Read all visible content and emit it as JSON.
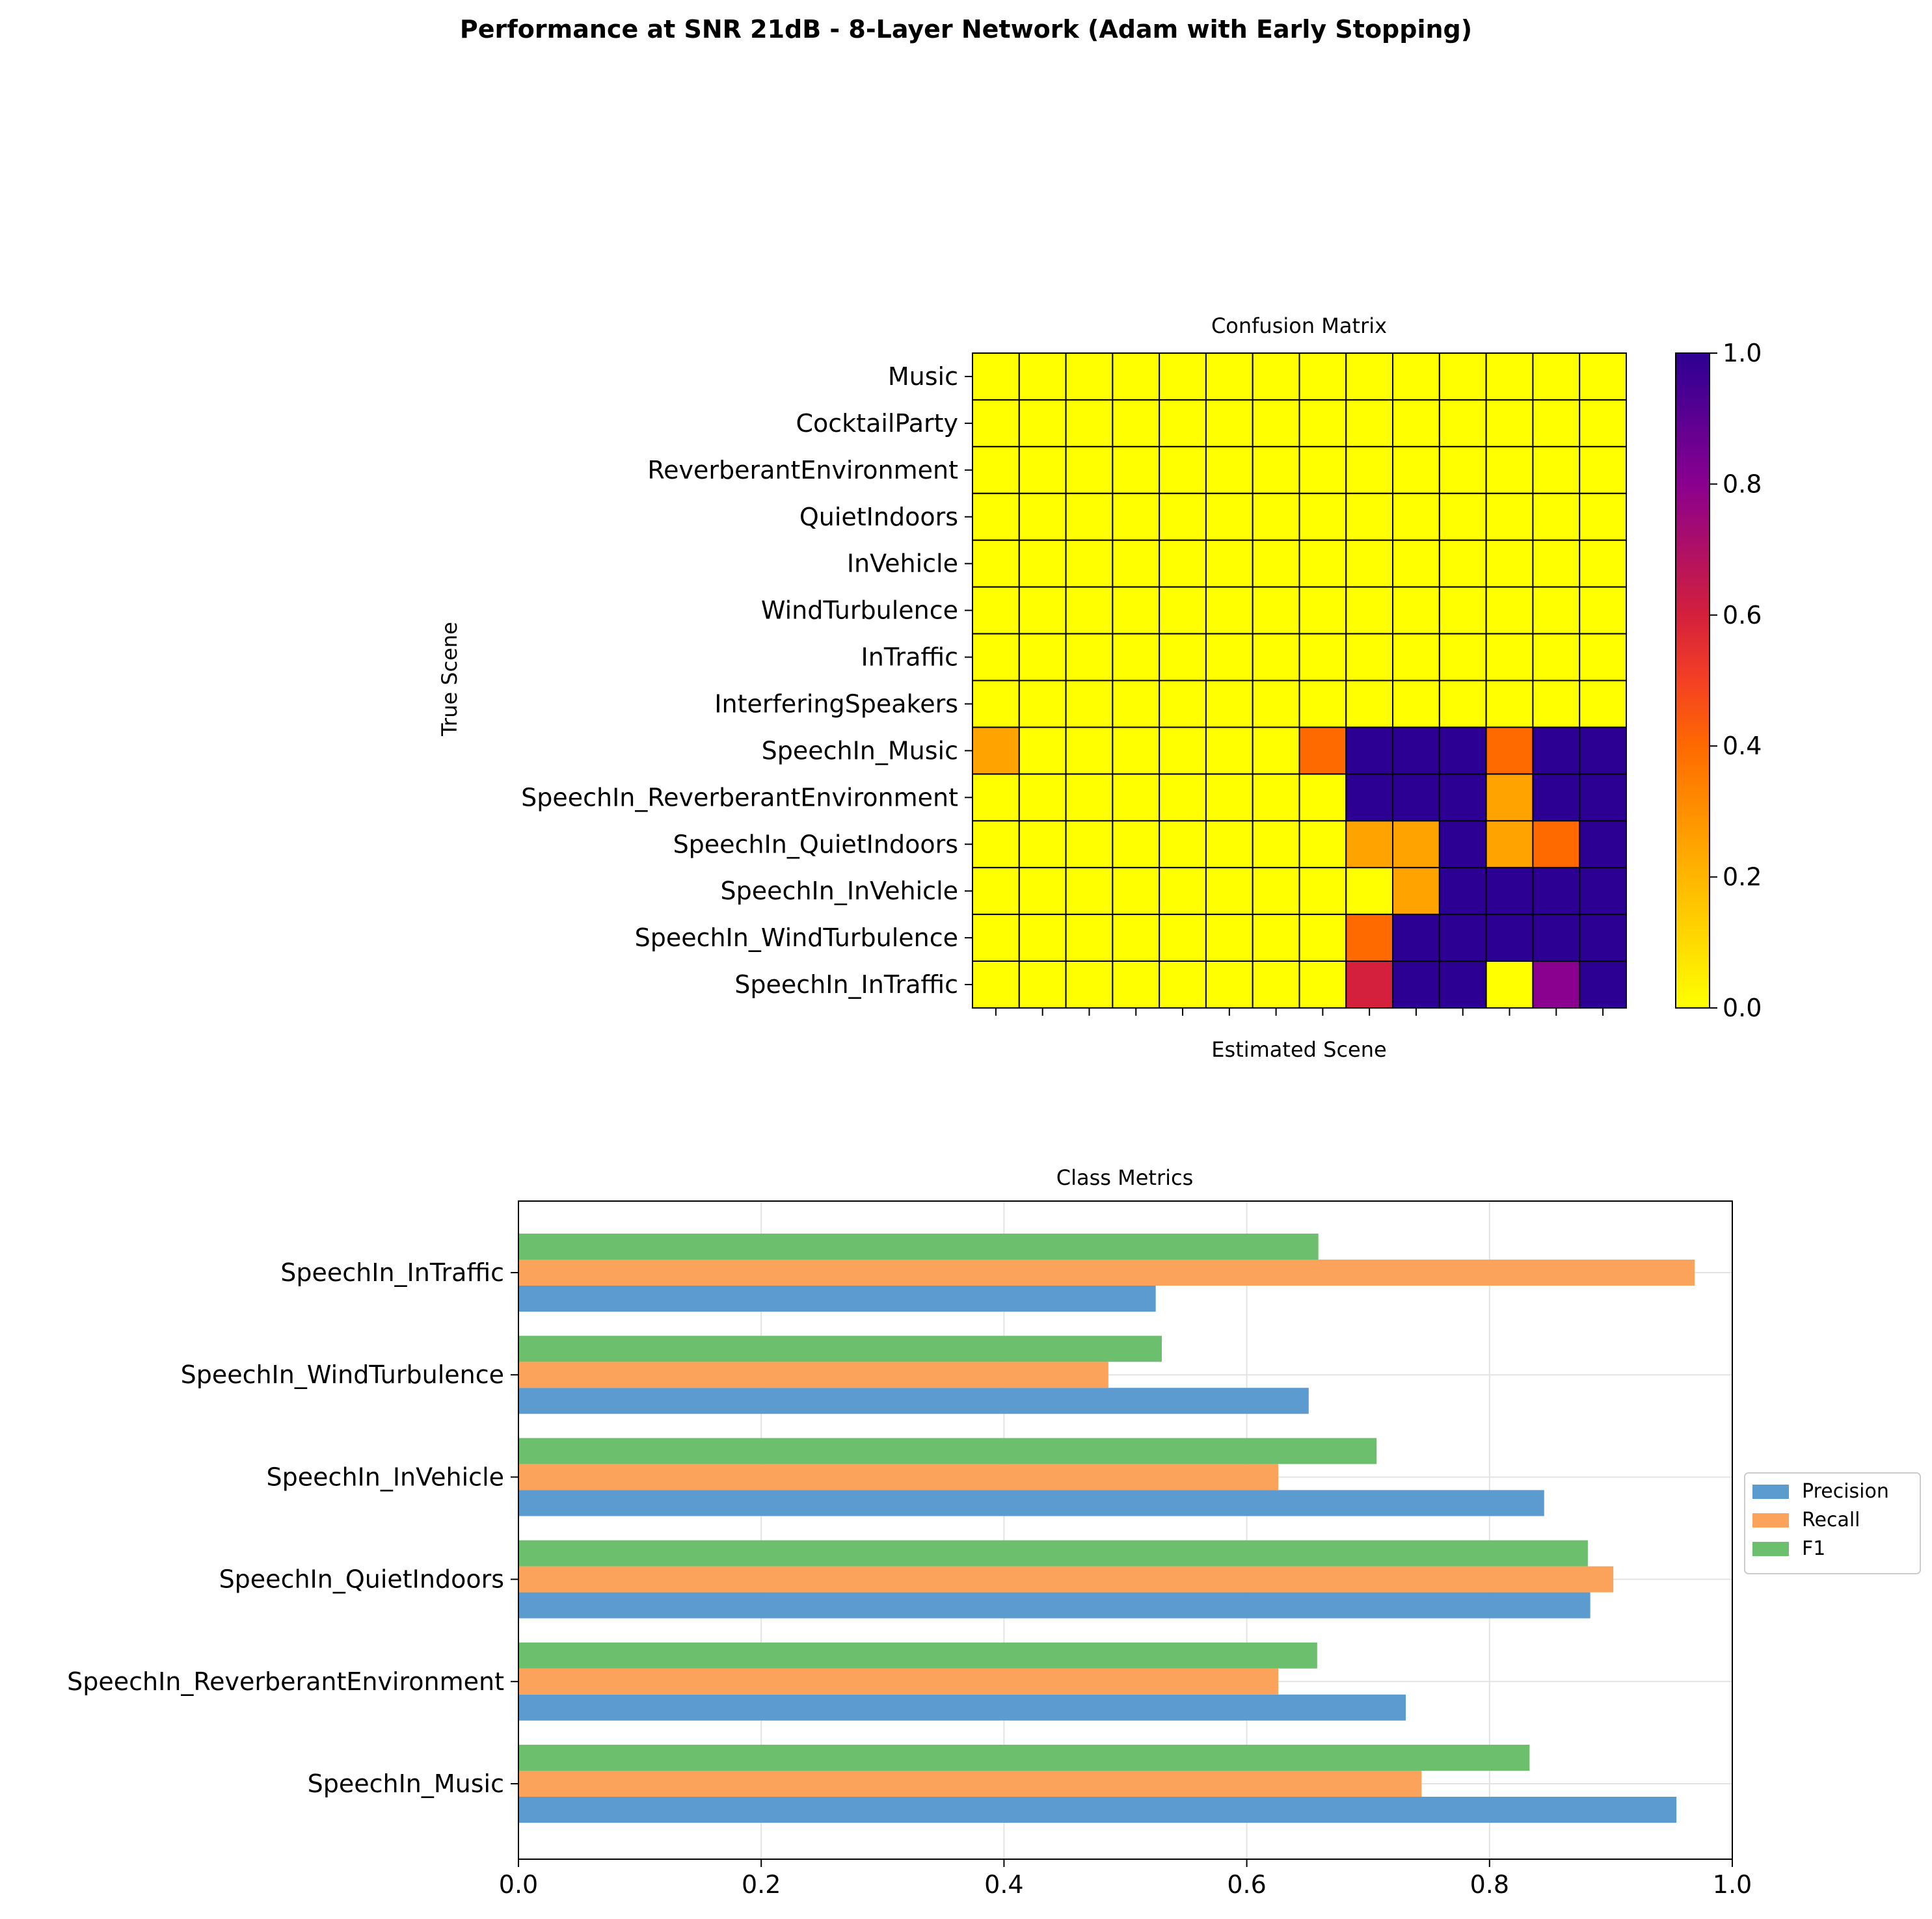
{
  "suptitle": "Performance at SNR 21dB - 8-Layer Network (Adam with Early Stopping)",
  "chart_data": [
    {
      "type": "heatmap",
      "title": "Confusion Matrix",
      "xlabel": "Estimated Scene",
      "ylabel": "True Scene",
      "colormap": "plasma_r",
      "colorbar": {
        "range": [
          0,
          1
        ],
        "ticks": [
          "0.0",
          "0.2",
          "0.4",
          "0.6",
          "0.8",
          "1.0"
        ]
      },
      "row_labels": [
        "Music",
        "CocktailParty",
        "ReverberantEnvironment",
        "QuietIndoors",
        "InVehicle",
        "WindTurbulence",
        "InTraffic",
        "InterferingSpeakers",
        "SpeechIn_Music",
        "SpeechIn_ReverberantEnvironment",
        "SpeechIn_QuietIndoors",
        "SpeechIn_InVehicle",
        "SpeechIn_WindTurbulence",
        "SpeechIn_InTraffic"
      ],
      "values": [
        [
          0,
          0,
          0,
          0,
          0,
          0,
          0,
          0,
          0,
          0,
          0,
          0,
          0,
          0
        ],
        [
          0,
          0,
          0,
          0,
          0,
          0,
          0,
          0,
          0,
          0,
          0,
          0,
          0,
          0
        ],
        [
          0,
          0,
          0,
          0,
          0,
          0,
          0,
          0,
          0,
          0,
          0,
          0,
          0,
          0
        ],
        [
          0,
          0,
          0,
          0,
          0,
          0,
          0,
          0,
          0,
          0,
          0,
          0,
          0,
          0
        ],
        [
          0,
          0,
          0,
          0,
          0,
          0,
          0,
          0,
          0,
          0,
          0,
          0,
          0,
          0
        ],
        [
          0,
          0,
          0,
          0,
          0,
          0,
          0,
          0,
          0,
          0,
          0,
          0,
          0,
          0
        ],
        [
          0,
          0,
          0,
          0,
          0,
          0,
          0,
          0,
          0,
          0,
          0,
          0,
          0,
          0
        ],
        [
          0,
          0,
          0,
          0,
          0,
          0,
          0,
          0,
          0,
          0,
          0,
          0,
          0,
          0
        ],
        [
          0.25,
          0,
          0,
          0,
          0,
          0,
          0,
          0.4,
          1,
          1,
          1,
          0.4,
          1,
          1
        ],
        [
          0,
          0,
          0,
          0,
          0,
          0,
          0,
          0,
          1,
          1,
          1,
          0.25,
          1,
          1
        ],
        [
          0,
          0,
          0,
          0,
          0,
          0,
          0,
          0,
          0.25,
          0.25,
          1,
          0.25,
          0.4,
          1
        ],
        [
          0,
          0,
          0,
          0,
          0,
          0,
          0,
          0,
          0,
          0.25,
          1,
          1,
          1,
          1
        ],
        [
          0,
          0,
          0,
          0,
          0,
          0,
          0,
          0,
          0.4,
          1,
          1,
          1,
          1,
          1
        ],
        [
          0,
          0,
          0,
          0,
          0,
          0,
          0,
          0,
          0.6,
          1,
          1,
          0,
          0.8,
          1
        ]
      ]
    },
    {
      "type": "bar",
      "orientation": "horizontal",
      "title": "Class Metrics",
      "categories": [
        "SpeechIn_Music",
        "SpeechIn_ReverberantEnvironment",
        "SpeechIn_QuietIndoors",
        "SpeechIn_InVehicle",
        "SpeechIn_WindTurbulence",
        "SpeechIn_InTraffic"
      ],
      "series": [
        {
          "name": "Precision",
          "color": "#5b9bd0",
          "values": [
            0.954,
            0.731,
            0.883,
            0.845,
            0.651,
            0.525
          ]
        },
        {
          "name": "Recall",
          "color": "#fba35a",
          "values": [
            0.744,
            0.626,
            0.902,
            0.626,
            0.486,
            0.969
          ]
        },
        {
          "name": "F1",
          "color": "#6cbf6c",
          "values": [
            0.833,
            0.658,
            0.881,
            0.707,
            0.53,
            0.659
          ]
        }
      ],
      "xlim": [
        0,
        1
      ],
      "xticks": [
        "0.0",
        "0.2",
        "0.4",
        "0.6",
        "0.8",
        "1.0"
      ],
      "grid": true,
      "legend_position": "right"
    }
  ]
}
